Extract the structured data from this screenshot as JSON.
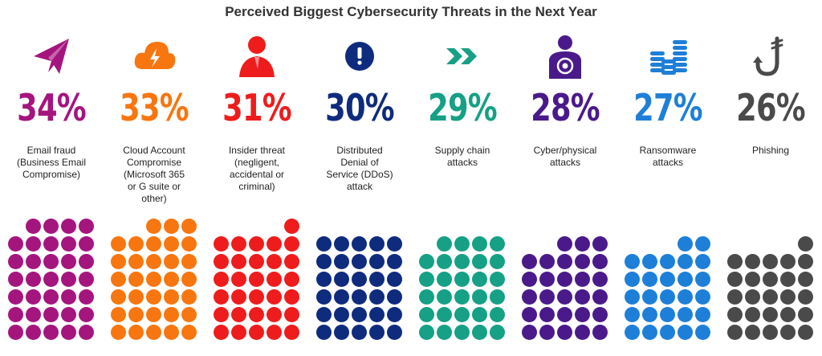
{
  "title": "Perceived Biggest Cybersecurity Threats in the Next Year",
  "chart_data": {
    "type": "pictograph",
    "title": "Perceived Biggest Cybersecurity Threats in the Next Year",
    "categories": [
      "Email fraud (Business Email Compromise)",
      "Cloud Account Compromise (Microsoft 365 or G suite or other)",
      "Insider threat (negligent, accidental or criminal)",
      "Distributed Denial of Service (DDoS) attack",
      "Supply chain attacks",
      "Cyber/physical attacks",
      "Ransomware attacks",
      "Phishing"
    ],
    "values": [
      34,
      33,
      31,
      30,
      29,
      28,
      27,
      26
    ],
    "unit": "%"
  },
  "threats": [
    {
      "percent": "34%",
      "label": "Email fraud\n(Business Email\nCompromise)",
      "color": "#a5157e",
      "icon": "paper-plane-icon",
      "value": 34
    },
    {
      "percent": "33%",
      "label": "Cloud Account\nCompromise\n(Microsoft 365\nor G suite or\nother)",
      "color": "#f7760f",
      "icon": "cloud-lightning-icon",
      "value": 33
    },
    {
      "percent": "31%",
      "label": "Insider threat\n(negligent,\naccidental or\ncriminal)",
      "color": "#ee1c1c",
      "icon": "person-icon",
      "value": 31
    },
    {
      "percent": "30%",
      "label": "Distributed\nDenial of\nService (DDoS)\nattack",
      "color": "#0f2b7e",
      "icon": "alert-icon",
      "value": 30
    },
    {
      "percent": "29%",
      "label": "Supply chain\nattacks",
      "color": "#16a085",
      "icon": "chevrons-right-icon",
      "value": 29
    },
    {
      "percent": "28%",
      "label": "Cyber/physical\nattacks",
      "color": "#4a1a8a",
      "icon": "target-person-icon",
      "value": 28
    },
    {
      "percent": "27%",
      "label": "Ransomware\nattacks",
      "color": "#1e7fd8",
      "icon": "coin-stacks-icon",
      "value": 27
    },
    {
      "percent": "26%",
      "label": "Phishing",
      "color": "#4a4a4a",
      "icon": "fishhook-icon",
      "value": 26
    }
  ]
}
